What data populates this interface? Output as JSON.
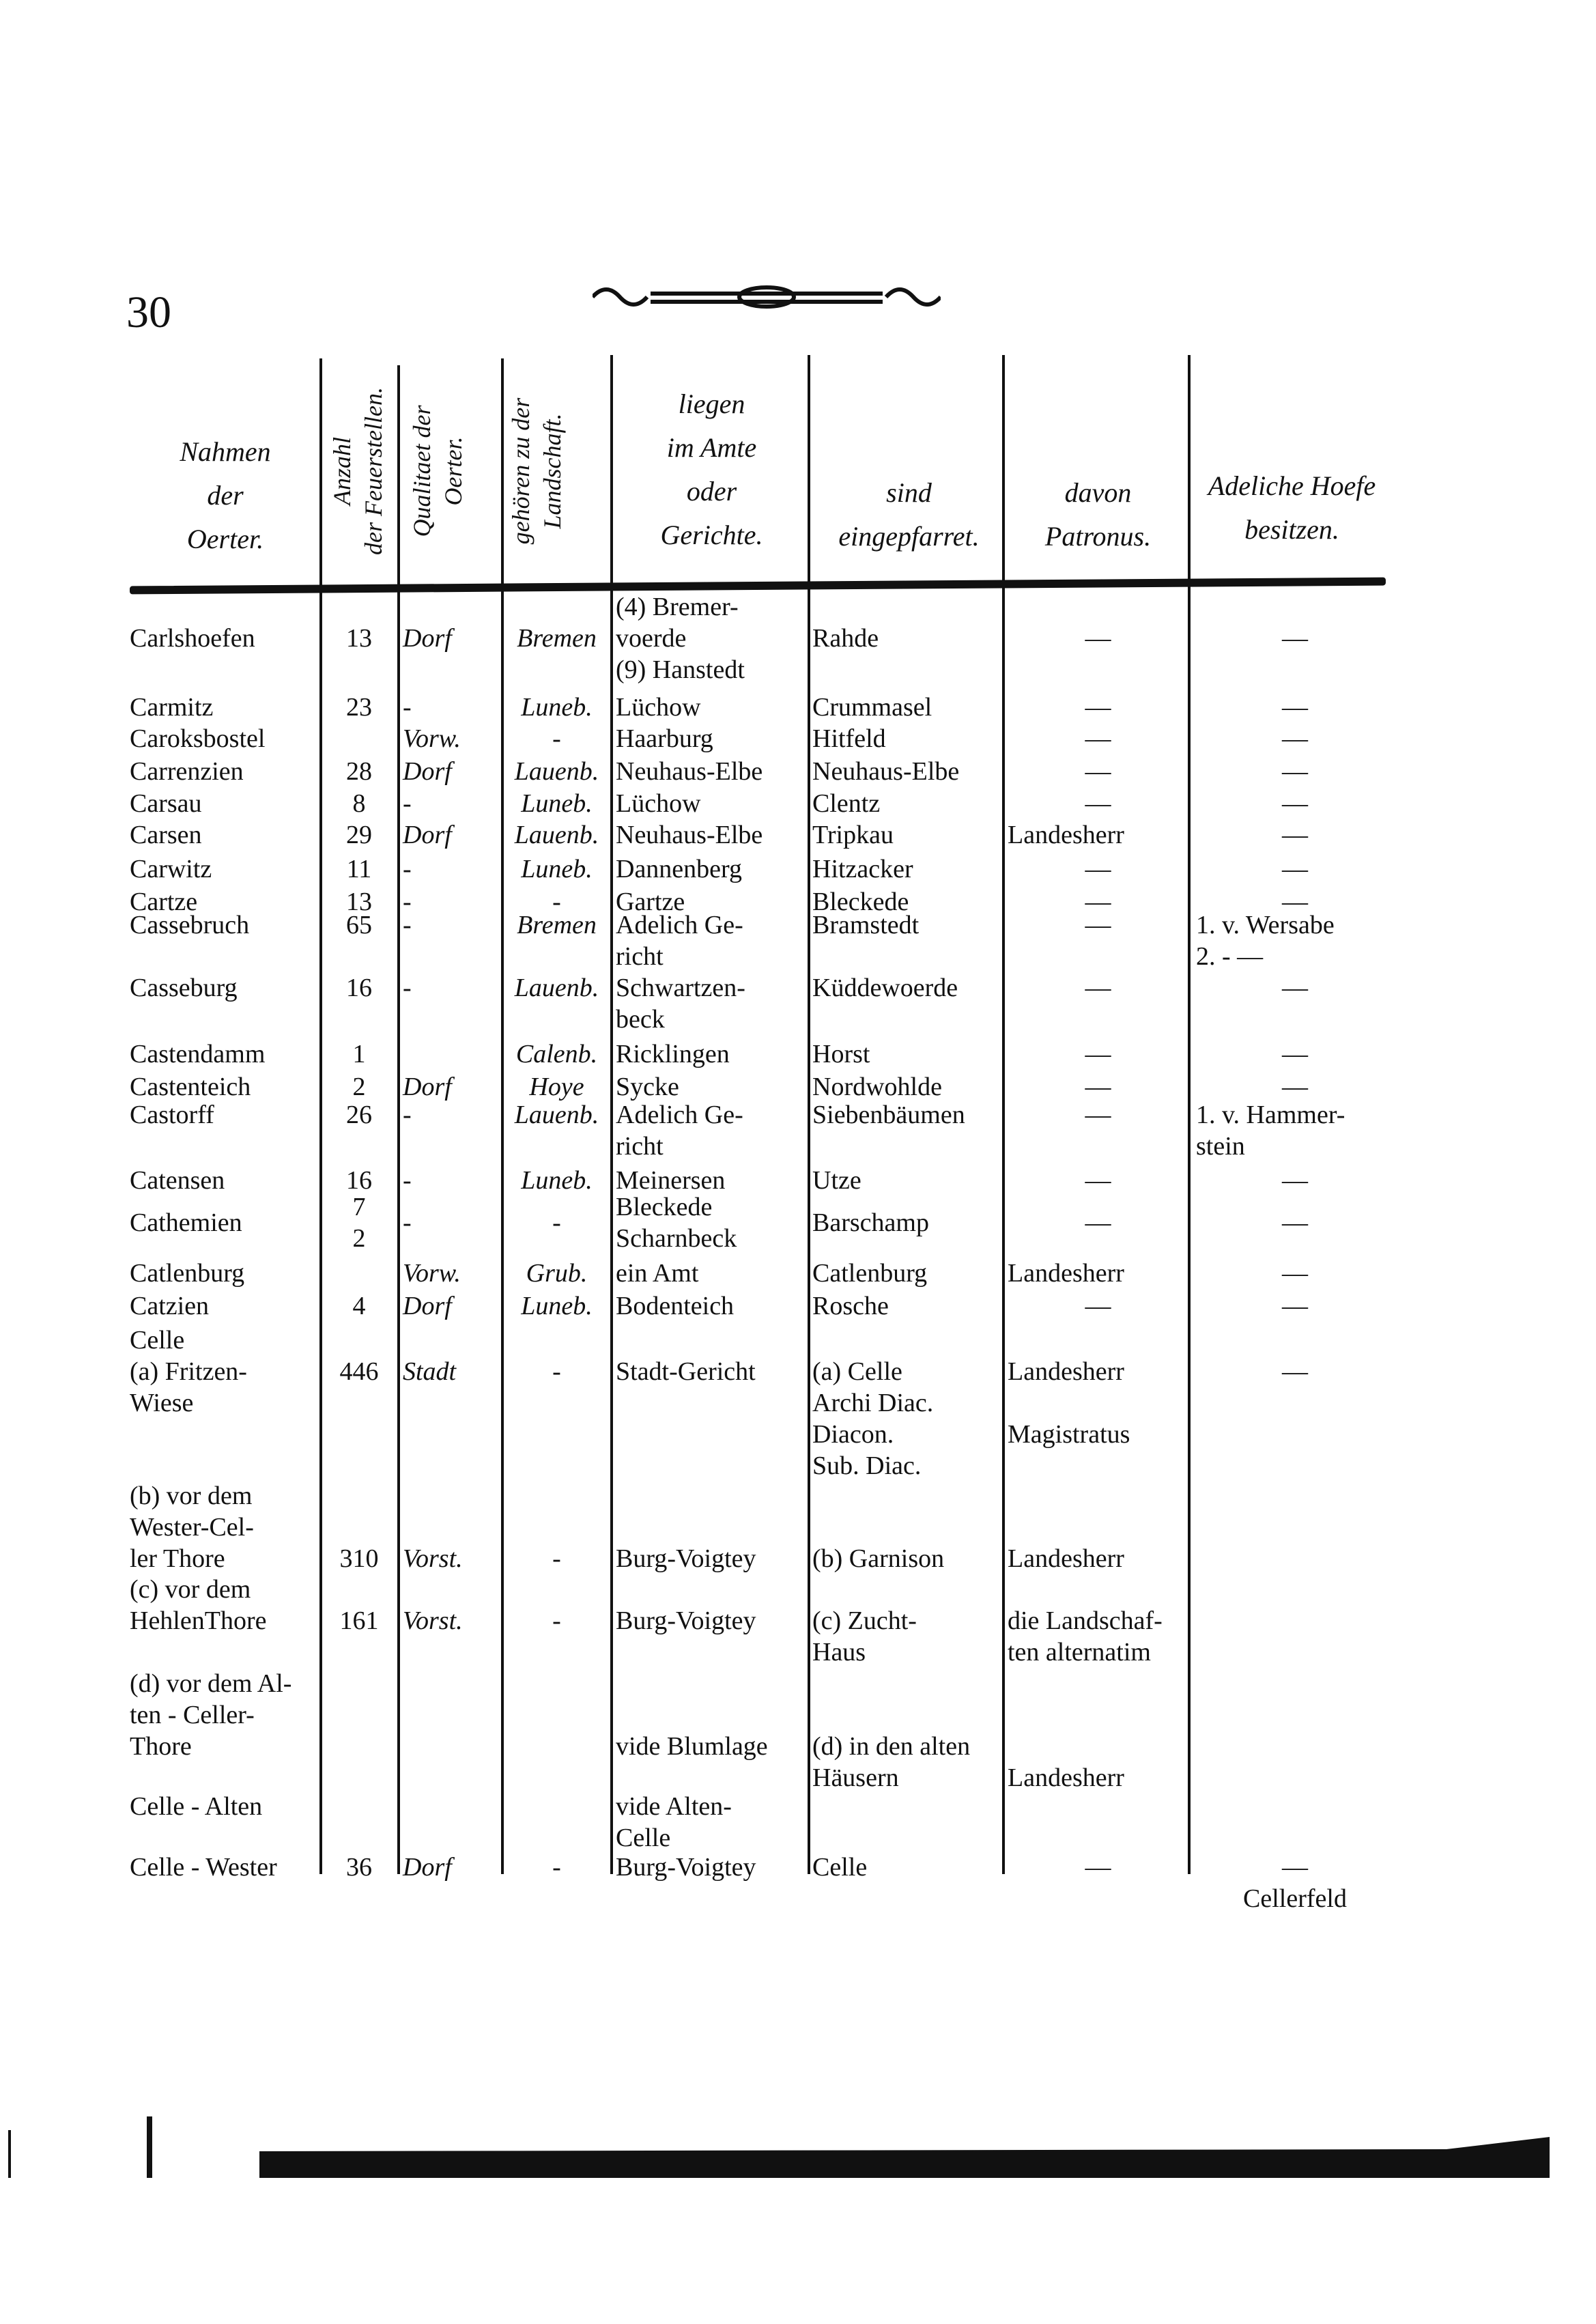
{
  "page_number": "30",
  "headers": {
    "name": "Nahmen\nder\nOerter.",
    "count": "Anzahl\nder Feuerstellen.",
    "quality": "Qualitaet der\nOerter.",
    "landschaft": "gehören zu der\nLandschaft.",
    "amt": "liegen\nim Amte\noder\nGerichte.",
    "eingepfarret": "sind\neingepfarret.",
    "patronus": "davon\nPatronus.",
    "adeliche": "Adeliche Hoefe\nbesitzen."
  },
  "rows": [
    {
      "name": "Carlshoefen",
      "count": "13",
      "quality": "Dorf",
      "landschaft": "Bremen",
      "amt": "(4) Bremer-\nvoerde\n(9) Hanstedt",
      "eingepfarret": "Rahde",
      "patronus": "—",
      "adeliche": "—"
    },
    {
      "name": "Carmitz",
      "count": "23",
      "quality": "-",
      "landschaft": "Luneb.",
      "amt": "Lüchow",
      "eingepfarret": "Crummasel",
      "patronus": "—",
      "adeliche": "—"
    },
    {
      "name": "Caroksbostel",
      "count": "",
      "quality": "Vorw.",
      "landschaft": "-",
      "amt": "Haarburg",
      "eingepfarret": "Hitfeld",
      "patronus": "—",
      "adeliche": "—"
    },
    {
      "name": "Carrenzien",
      "count": "28",
      "quality": "Dorf",
      "landschaft": "Lauenb.",
      "amt": "Neuhaus-Elbe",
      "eingepfarret": "Neuhaus-Elbe",
      "patronus": "—",
      "adeliche": "—"
    },
    {
      "name": "Carsau",
      "count": "8",
      "quality": "-",
      "landschaft": "Luneb.",
      "amt": "Lüchow",
      "eingepfarret": "Clentz",
      "patronus": "—",
      "adeliche": "—"
    },
    {
      "name": "Carsen",
      "count": "29",
      "quality": "Dorf",
      "landschaft": "Lauenb.",
      "amt": "Neuhaus-Elbe",
      "eingepfarret": "Tripkau",
      "patronus": "Landesherr",
      "adeliche": "—"
    },
    {
      "name": "Carwitz",
      "count": "11",
      "quality": "-",
      "landschaft": "Luneb.",
      "amt": "Dannenberg",
      "eingepfarret": "Hitzacker",
      "patronus": "—",
      "adeliche": "—"
    },
    {
      "name": "Cartze",
      "count": "13",
      "quality": "-",
      "landschaft": "-",
      "amt": "Gartze",
      "eingepfarret": "Bleckede",
      "patronus": "—",
      "adeliche": "—"
    },
    {
      "name": "Cassebruch",
      "count": "65",
      "quality": "-",
      "landschaft": "Bremen",
      "amt": "Adelich Ge-\nricht",
      "eingepfarret": "Bramstedt",
      "patronus": "—",
      "adeliche": "1. v. Wersabe\n2.  -      —"
    },
    {
      "name": "Casseburg",
      "count": "16",
      "quality": "-",
      "landschaft": "Lauenb.",
      "amt": "Schwartzen-\nbeck",
      "eingepfarret": "Küddewoerde",
      "patronus": "—",
      "adeliche": "—"
    },
    {
      "name": "Castendamm",
      "count": "1",
      "quality": "",
      "landschaft": "Calenb.",
      "amt": "Ricklingen",
      "eingepfarret": "Horst",
      "patronus": "—",
      "adeliche": "—"
    },
    {
      "name": "Castenteich",
      "count": "2",
      "quality": "Dorf",
      "landschaft": "Hoye",
      "amt": "Sycke",
      "eingepfarret": "Nordwohlde",
      "patronus": "—",
      "adeliche": "—"
    },
    {
      "name": "Castorff",
      "count": "26",
      "quality": "-",
      "landschaft": "Lauenb.",
      "amt": "Adelich Ge-\nricht",
      "eingepfarret": "Siebenbäumen",
      "patronus": "—",
      "adeliche": "1. v. Hammer-\nstein"
    },
    {
      "name": "Catensen",
      "count": "16",
      "quality": "-",
      "landschaft": "Luneb.",
      "amt": "Meinersen",
      "eingepfarret": "Utze",
      "patronus": "—",
      "adeliche": "—"
    },
    {
      "name": "Cathemien",
      "count": "7\n2",
      "quality": "-",
      "landschaft": "-",
      "amt": "Bleckede\nScharnbeck",
      "eingepfarret": "Barschamp",
      "patronus": "—",
      "adeliche": "—"
    },
    {
      "name": "Catlenburg",
      "count": "",
      "quality": "Vorw.",
      "landschaft": "Grub.",
      "amt": "ein Amt",
      "eingepfarret": "Catlenburg",
      "patronus": "Landesherr",
      "adeliche": "—"
    },
    {
      "name": "Catzien",
      "count": "4",
      "quality": "Dorf",
      "landschaft": "Luneb.",
      "amt": "Bodenteich",
      "eingepfarret": "Rosche",
      "patronus": "—",
      "adeliche": "—"
    },
    {
      "name": "Celle\n(a) Fritzen-\nWiese",
      "count": "446",
      "quality": "Stadt",
      "landschaft": "-",
      "amt": "Stadt-Gericht",
      "eingepfarret": "(a) Celle\nArchi Diac.\nDiacon.\nSub. Diac.",
      "patronus": "Landesherr\n\nMagistratus",
      "adeliche": "—"
    },
    {
      "name": "(b) vor dem\nWester-Cel-\nler Thore",
      "count": "310",
      "quality": "Vorst.",
      "landschaft": "-",
      "amt": "Burg-Voigtey",
      "eingepfarret": "(b) Garnison",
      "patronus": "Landesherr",
      "adeliche": ""
    },
    {
      "name": "(c) vor dem\nHehlenThore",
      "count": "161",
      "quality": "Vorst.",
      "landschaft": "-",
      "amt": "Burg-Voigtey",
      "eingepfarret": "(c) Zucht-\nHaus",
      "patronus": "die Landschaf-\nten alternatim",
      "adeliche": ""
    },
    {
      "name": "(d) vor dem Al-\nten - Celler-\nThore",
      "count": "",
      "quality": "",
      "landschaft": "",
      "amt": "vide Blumlage",
      "eingepfarret": "(d) in den alten\nHäusern",
      "patronus": "\nLandesherr",
      "adeliche": ""
    },
    {
      "name": "Celle - Alten",
      "count": "",
      "quality": "",
      "landschaft": "",
      "amt": "vide Alten-\nCelle",
      "eingepfarret": "",
      "patronus": "",
      "adeliche": ""
    },
    {
      "name": "Celle - Wester",
      "count": "36",
      "quality": "Dorf",
      "landschaft": "-",
      "amt": "Burg-Voigtey",
      "eingepfarret": "Celle",
      "patronus": "—",
      "adeliche": "—\nCellerfeld"
    }
  ]
}
